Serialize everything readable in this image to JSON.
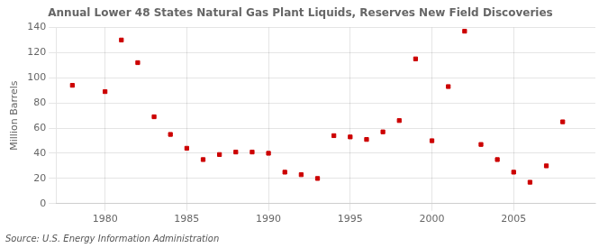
{
  "chart_data": {
    "type": "scatter",
    "title": "Annual Lower 48 States Natural Gas Plant Liquids, Reserves New Field Discoveries",
    "ylabel": "Million Barrels",
    "annotations": [
      "Source: U.S. Energy Information Administration"
    ],
    "x": [
      1978,
      1980,
      1981,
      1982,
      1983,
      1984,
      1985,
      1986,
      1987,
      1988,
      1989,
      1990,
      1991,
      1992,
      1993,
      1994,
      1995,
      1996,
      1997,
      1998,
      1999,
      2000,
      2001,
      2002,
      2003,
      2004,
      2005,
      2006,
      2007,
      2008
    ],
    "values": [
      94,
      89,
      130,
      112,
      69,
      55,
      44,
      35,
      39,
      41,
      41,
      40,
      25,
      23,
      20,
      54,
      53,
      51,
      57,
      66,
      115,
      50,
      93,
      137,
      47,
      35,
      25,
      17,
      30,
      65
    ],
    "color": "#cc0000",
    "marker": "square",
    "xlim": [
      1977,
      2010
    ],
    "ylim": [
      0,
      140
    ],
    "xticks": [
      1980,
      1985,
      1990,
      1995,
      2000,
      2005
    ],
    "yticks": [
      0,
      20,
      40,
      60,
      80,
      100,
      120,
      140
    ],
    "grid": true
  }
}
